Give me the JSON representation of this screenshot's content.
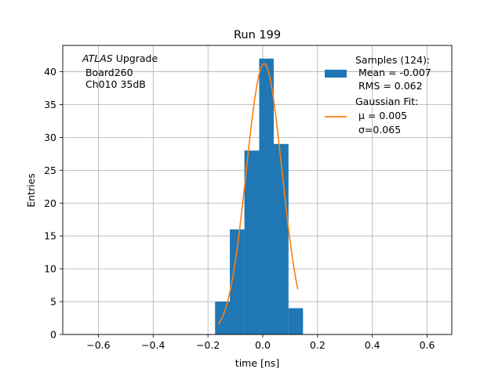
{
  "chart_data": {
    "type": "bar",
    "title": "Run 199",
    "xlabel": "time [ns]",
    "ylabel": "Entries",
    "xlim": [
      -0.73,
      0.69
    ],
    "ylim": [
      0,
      44
    ],
    "grid": true,
    "xticks": [
      -0.6,
      -0.4,
      -0.2,
      0.0,
      0.2,
      0.4,
      0.6
    ],
    "xtick_labels": [
      "−0.6",
      "−0.4",
      "−0.2",
      "0.0",
      "0.2",
      "0.4",
      "0.6"
    ],
    "yticks": [
      0,
      5,
      10,
      15,
      20,
      25,
      30,
      35,
      40
    ],
    "ytick_labels": [
      "0",
      "5",
      "10",
      "15",
      "20",
      "25",
      "30",
      "35",
      "40"
    ],
    "histogram": {
      "bin_edges": [
        -0.174,
        -0.12,
        -0.067,
        -0.013,
        0.04,
        0.094,
        0.147
      ],
      "counts": [
        5,
        16,
        28,
        42,
        29,
        4
      ],
      "color": "#1f77b4"
    },
    "gaussian_fit": {
      "mu": 0.005,
      "sigma": 0.065,
      "amplitude": 41.2,
      "x_range": [
        -0.162,
        0.128
      ],
      "color": "#ff7f0e"
    },
    "legend": {
      "placement": "upper right",
      "entries": [
        {
          "kind": "patch",
          "color": "#1f77b4",
          "lines": [
            "Samples (124):",
            " Mean = -0.007",
            " RMS = 0.062"
          ]
        },
        {
          "kind": "line",
          "color": "#ff7f0e",
          "lines": [
            "Gaussian Fit:",
            " μ = 0.005",
            " σ=0.065"
          ]
        }
      ]
    },
    "annotation": {
      "emph": "ATLAS",
      "rest": " Upgrade",
      "lines": [
        " Board260",
        " Ch010 35dB"
      ]
    }
  }
}
